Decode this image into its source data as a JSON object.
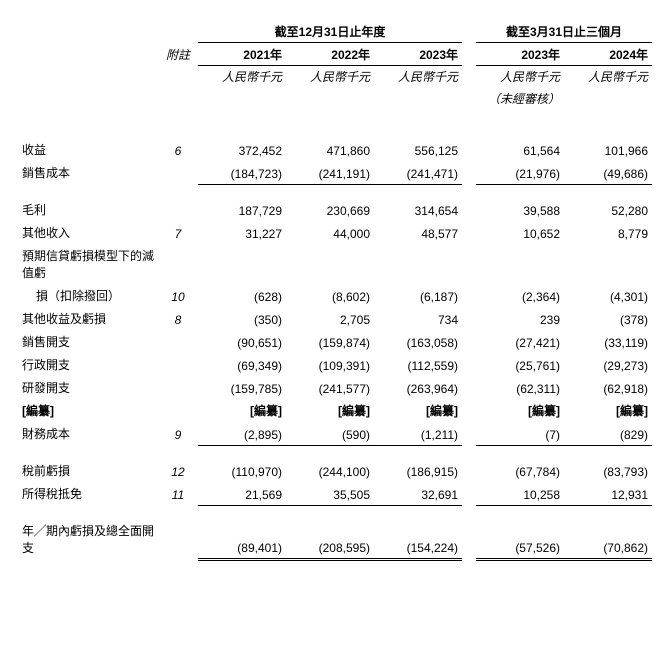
{
  "headers": {
    "group_annual": "截至12月31日止年度",
    "group_quarter": "截至3月31日止三個月",
    "note_label": "附註",
    "y2021": "2021年",
    "y2022": "2022年",
    "y2023": "2023年",
    "q2023": "2023年",
    "q2024": "2024年",
    "unit": "人民幣千元",
    "unaudited": "（未經審核）"
  },
  "rows": {
    "revenue": {
      "label": "收益",
      "note": "6",
      "v": [
        "372,452",
        "471,860",
        "556,125",
        "61,564",
        "101,966"
      ]
    },
    "cogs": {
      "label": "銷售成本",
      "note": "",
      "v": [
        "(184,723)",
        "(241,191)",
        "(241,471)",
        "(21,976)",
        "(49,686)"
      ]
    },
    "gross": {
      "label": "毛利",
      "note": "",
      "v": [
        "187,729",
        "230,669",
        "314,654",
        "39,588",
        "52,280"
      ]
    },
    "other_income": {
      "label": "其他收入",
      "note": "7",
      "v": [
        "31,227",
        "44,000",
        "48,577",
        "10,652",
        "8,779"
      ]
    },
    "ecl1": {
      "label": "預期信貸虧損模型下的減值虧",
      "note": "",
      "v": [
        "",
        "",
        "",
        "",
        ""
      ]
    },
    "ecl2": {
      "label": "損（扣除撥回）",
      "note": "10",
      "v": [
        "(628)",
        "(8,602)",
        "(6,187)",
        "(2,364)",
        "(4,301)"
      ]
    },
    "other_gain": {
      "label": "其他收益及虧損",
      "note": "8",
      "v": [
        "(350)",
        "2,705",
        "734",
        "239",
        "(378)"
      ]
    },
    "selling": {
      "label": "銷售開支",
      "note": "",
      "v": [
        "(90,651)",
        "(159,874)",
        "(163,058)",
        "(27,421)",
        "(33,119)"
      ]
    },
    "admin": {
      "label": "行政開支",
      "note": "",
      "v": [
        "(69,349)",
        "(109,391)",
        "(112,559)",
        "(25,761)",
        "(29,273)"
      ]
    },
    "rd": {
      "label": "研發開支",
      "note": "",
      "v": [
        "(159,785)",
        "(241,577)",
        "(263,964)",
        "(62,311)",
        "(62,918)"
      ]
    },
    "redacted": {
      "label": "[編纂]",
      "note": "",
      "v": [
        "[編纂]",
        "[編纂]",
        "[編纂]",
        "[編纂]",
        "[編纂]"
      ]
    },
    "finance": {
      "label": "財務成本",
      "note": "9",
      "v": [
        "(2,895)",
        "(590)",
        "(1,211)",
        "(7)",
        "(829)"
      ]
    },
    "pretax": {
      "label": "稅前虧損",
      "note": "12",
      "v": [
        "(110,970)",
        "(244,100)",
        "(186,915)",
        "(67,784)",
        "(83,793)"
      ]
    },
    "tax": {
      "label": "所得稅抵免",
      "note": "11",
      "v": [
        "21,569",
        "35,505",
        "32,691",
        "10,258",
        "12,931"
      ]
    },
    "total": {
      "label": "年╱期內虧損及總全面開支",
      "note": "",
      "v": [
        "(89,401)",
        "(208,595)",
        "(154,224)",
        "(57,526)",
        "(70,862)"
      ]
    }
  }
}
